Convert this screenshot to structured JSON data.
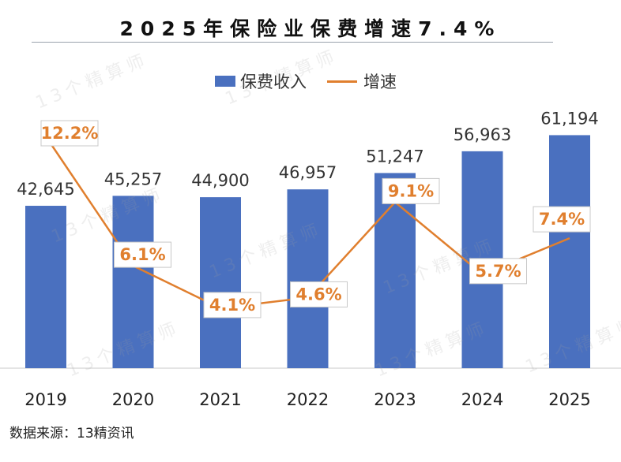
{
  "title": "2025年保险业保费增速7.4%",
  "source": "数据来源：13精资讯",
  "watermark": "13个精算师",
  "colors": {
    "bar": "#4a70bf",
    "line": "#e07f2e",
    "label_text": "#333333",
    "rate_text": "#e07f2e"
  },
  "chart_data": {
    "type": "bar",
    "title": "2025年保险业保费增速7.4%",
    "categories": [
      "2019",
      "2020",
      "2021",
      "2022",
      "2023",
      "2024",
      "2025"
    ],
    "series": [
      {
        "name": "保费收入",
        "type": "bar",
        "values": [
          42645,
          45257,
          44900,
          46957,
          51247,
          56963,
          61194
        ],
        "labels": [
          "42,645",
          "45,257",
          "44,900",
          "46,957",
          "51,247",
          "56,963",
          "61,194"
        ]
      },
      {
        "name": "增速",
        "type": "line",
        "values": [
          12.2,
          6.1,
          4.1,
          4.6,
          9.1,
          5.7,
          7.4
        ],
        "labels": [
          "12.2%",
          "6.1%",
          "4.1%",
          "4.6%",
          "9.1%",
          "5.7%",
          "7.4%"
        ]
      }
    ],
    "legend": [
      "保费收入",
      "增速"
    ],
    "legend_position": "top-center",
    "xlabel": "",
    "ylabel": "",
    "grid": false
  }
}
